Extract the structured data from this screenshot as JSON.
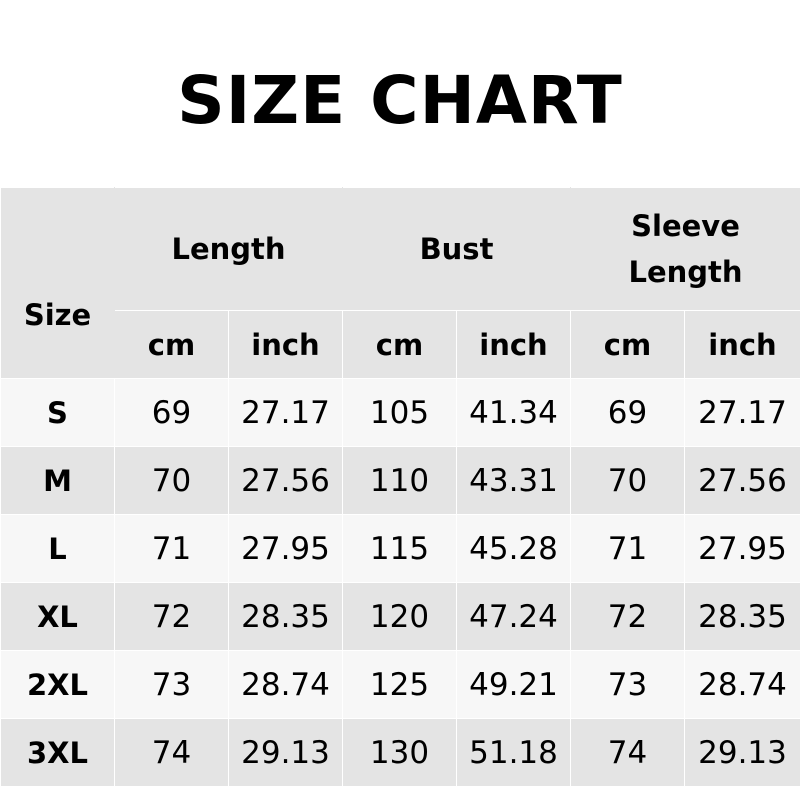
{
  "title": "SIZE CHART",
  "header": {
    "size": "Size",
    "groups": [
      "Length",
      "Bust",
      "Sleeve Length"
    ],
    "units": [
      "cm",
      "inch",
      "cm",
      "inch",
      "cm",
      "inch"
    ]
  },
  "rows": [
    [
      "S",
      "69",
      "27.17",
      "105",
      "41.34",
      "69",
      "27.17"
    ],
    [
      "M",
      "70",
      "27.56",
      "110",
      "43.31",
      "70",
      "27.56"
    ],
    [
      "L",
      "71",
      "27.95",
      "115",
      "45.28",
      "71",
      "27.95"
    ],
    [
      "XL",
      "72",
      "28.35",
      "120",
      "47.24",
      "72",
      "28.35"
    ],
    [
      "2XL",
      "73",
      "28.74",
      "125",
      "49.21",
      "73",
      "28.74"
    ],
    [
      "3XL",
      "74",
      "29.13",
      "130",
      "51.18",
      "74",
      "29.13"
    ]
  ],
  "colors": {
    "header_bg": "#e4e4e4",
    "row_light": "#f7f7f7",
    "row_dark": "#e4e4e4"
  }
}
